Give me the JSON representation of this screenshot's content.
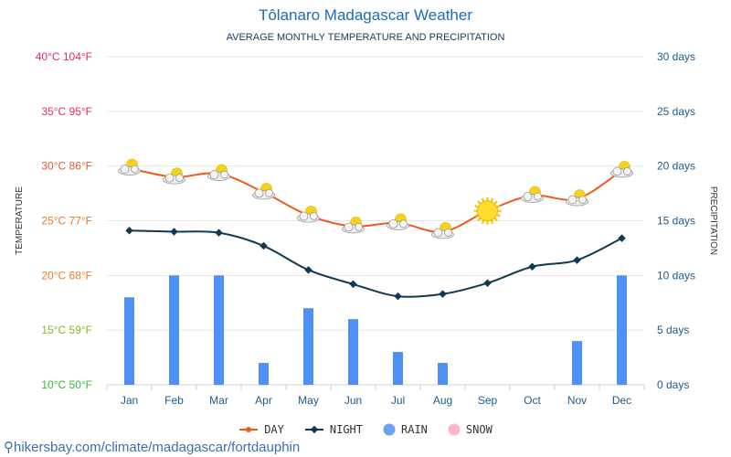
{
  "title": "Tôlanaro Madagascar Weather",
  "subtitle": "AVERAGE MONTHLY TEMPERATURE AND PRECIPITATION",
  "footer_link": "hikersbay.com/climate/madagascar/fortdauphin",
  "colors": {
    "day": "#f05a19",
    "night": "#0f3a52",
    "rain": "#4f90f7",
    "snow": "#ffb6c8",
    "left_ticks": [
      "#ee2a5c",
      "#ee2a5c",
      "#e35a39",
      "#e67a2a",
      "#f27b2b",
      "#7fb929",
      "#33bb33"
    ]
  },
  "chart_data": {
    "type": "line+bar",
    "categories": [
      "Jan",
      "Feb",
      "Mar",
      "Apr",
      "May",
      "Jun",
      "Jul",
      "Aug",
      "Sep",
      "Oct",
      "Nov",
      "Dec"
    ],
    "y_left_label": "TEMPERATURE",
    "y_right_label": "PRECIPITATION",
    "y_left_range": [
      10,
      40
    ],
    "y_right_range": [
      0,
      30
    ],
    "y_left_ticks": [
      "10°C 50°F",
      "15°C 59°F",
      "20°C 68°F",
      "25°C 77°F",
      "30°C 86°F",
      "35°C 95°F",
      "40°C 104°F"
    ],
    "y_right_ticks": [
      "0 days",
      "5 days",
      "10 days",
      "15 days",
      "20 days",
      "25 days",
      "30 days"
    ],
    "series": [
      {
        "name": "DAY",
        "type": "line",
        "axis": "left",
        "values": [
          29.8,
          29.0,
          29.3,
          27.6,
          25.5,
          24.5,
          24.8,
          24.0,
          25.9,
          27.3,
          27.0,
          29.6
        ]
      },
      {
        "name": "NIGHT",
        "type": "line",
        "axis": "left",
        "values": [
          24.1,
          24.0,
          23.9,
          22.7,
          20.5,
          19.2,
          18.1,
          18.3,
          19.3,
          20.8,
          21.4,
          23.4
        ]
      },
      {
        "name": "RAIN",
        "type": "bar",
        "axis": "right",
        "values": [
          8,
          10,
          10,
          2,
          7,
          6,
          3,
          2,
          0,
          0,
          4,
          10
        ]
      },
      {
        "name": "SNOW",
        "type": "bar",
        "axis": "right",
        "values": [
          0,
          0,
          0,
          0,
          0,
          0,
          0,
          0,
          0,
          0,
          0,
          0
        ]
      }
    ],
    "weather_icons": [
      "partly-cloudy-icon",
      "partly-cloudy-icon",
      "partly-cloudy-icon",
      "partly-cloudy-icon",
      "partly-cloudy-icon",
      "partly-cloudy-icon",
      "partly-cloudy-icon",
      "partly-cloudy-icon",
      "sun-icon",
      "partly-cloudy-icon",
      "partly-cloudy-icon",
      "partly-cloudy-icon"
    ],
    "grid": true,
    "legend_position": "bottom-center"
  }
}
